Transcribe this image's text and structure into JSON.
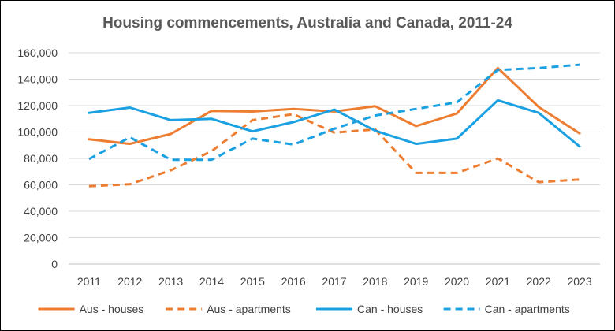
{
  "chart_data": {
    "type": "line",
    "title": "Housing commencements, Australia and Canada, 2011-24",
    "xlabel": "",
    "ylabel": "",
    "categories": [
      "2011",
      "2012",
      "2013",
      "2014",
      "2015",
      "2016",
      "2017",
      "2018",
      "2019",
      "2020",
      "2021",
      "2022",
      "2023"
    ],
    "ylim": [
      0,
      160000
    ],
    "yticks": [
      0,
      20000,
      40000,
      60000,
      80000,
      100000,
      120000,
      140000,
      160000
    ],
    "ytick_labels": [
      "0",
      "20,000",
      "40,000",
      "60,000",
      "80,000",
      "100,000",
      "120,000",
      "140,000",
      "160,000"
    ],
    "grid": true,
    "legend_position": "bottom",
    "series": [
      {
        "name": "Aus - houses",
        "color": "#ED7D31",
        "dash": "solid",
        "values": [
          94500,
          91000,
          98500,
          116000,
          115500,
          117500,
          115500,
          119500,
          104500,
          114000,
          148500,
          119000,
          99000
        ]
      },
      {
        "name": "Aus - apartments",
        "color": "#ED7D31",
        "dash": "dashed",
        "values": [
          59000,
          60500,
          71000,
          85500,
          109000,
          113500,
          99500,
          102000,
          69000,
          69000,
          80000,
          62000,
          64000
        ]
      },
      {
        "name": "Can - houses",
        "color": "#1BA1E2",
        "dash": "solid",
        "values": [
          114500,
          118500,
          109000,
          110000,
          100500,
          107500,
          117000,
          101000,
          91000,
          95000,
          124000,
          114500,
          89000
        ]
      },
      {
        "name": "Can - apartments",
        "color": "#1BA1E2",
        "dash": "dashed",
        "values": [
          79500,
          96000,
          79000,
          79000,
          95000,
          90500,
          102500,
          112500,
          117500,
          122500,
          147000,
          148500,
          151000
        ]
      }
    ]
  }
}
